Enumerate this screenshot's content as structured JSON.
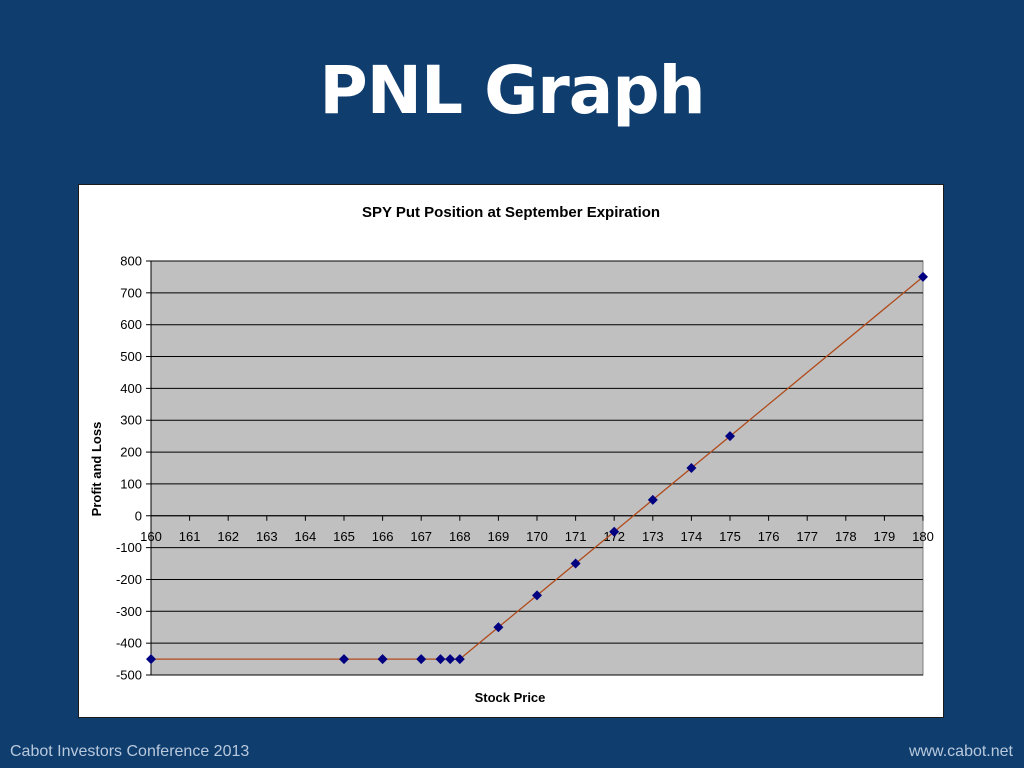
{
  "slide": {
    "title": "PNL Graph",
    "footer_left": "Cabot Investors Conference 2013",
    "footer_right": "www.cabot.net"
  },
  "colors": {
    "background": "#0e3d6e",
    "plot_area": "#c0c0c0",
    "line": "#b04a1a",
    "marker": "#000080"
  },
  "chart_data": {
    "type": "line",
    "title": "SPY Put Position at September Expiration",
    "xlabel": "Stock Price",
    "ylabel": "Profit and Loss",
    "xlim": [
      160,
      180
    ],
    "ylim": [
      -500,
      800
    ],
    "xticks": [
      160,
      161,
      162,
      163,
      164,
      165,
      166,
      167,
      168,
      169,
      170,
      171,
      172,
      173,
      174,
      175,
      176,
      177,
      178,
      179,
      180
    ],
    "yticks": [
      800,
      700,
      600,
      500,
      400,
      300,
      200,
      100,
      0,
      -100,
      -200,
      -300,
      -400,
      -500
    ],
    "grid": true,
    "legend": "none",
    "series": [
      {
        "x": [
          160,
          165,
          166,
          167,
          167.5,
          167.75,
          168,
          169,
          170,
          171,
          172,
          173,
          174,
          175,
          180
        ],
        "y": [
          -450,
          -450,
          -450,
          -450,
          -450,
          -450,
          -450,
          -350,
          -250,
          -150,
          -50,
          50,
          150,
          250,
          750
        ]
      }
    ]
  }
}
